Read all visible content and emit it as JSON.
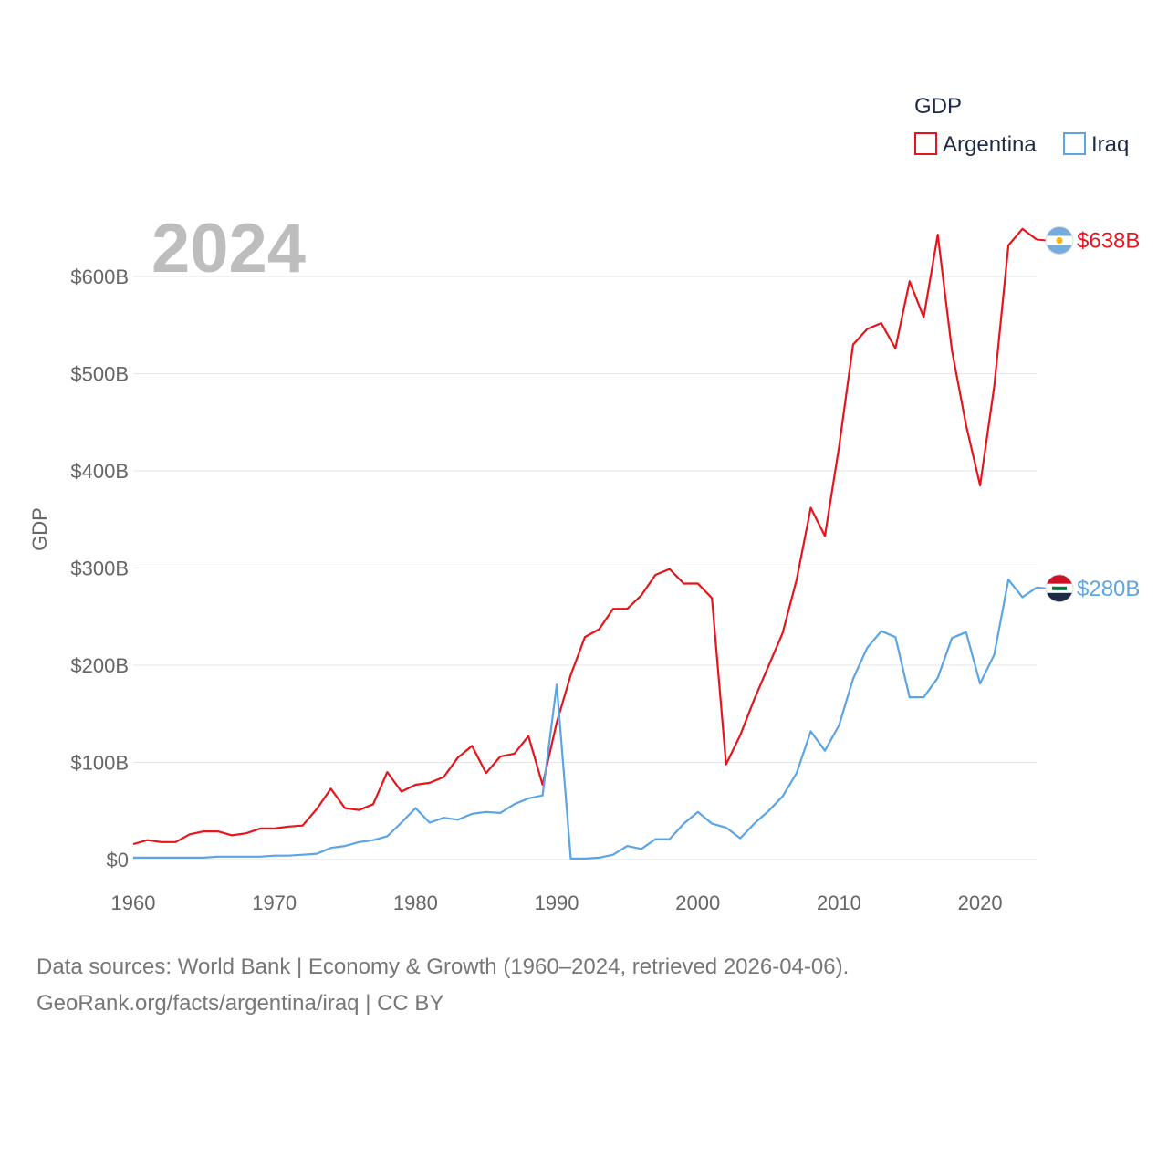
{
  "chart_data": {
    "type": "line",
    "title": "GDP",
    "year_display": "2024",
    "ylabel": "GDP",
    "xlabel": "",
    "ylim": [
      0,
      650
    ],
    "xlim": [
      1960,
      2024
    ],
    "x_ticks": [
      "1960",
      "1970",
      "1980",
      "1990",
      "2000",
      "2010",
      "2020"
    ],
    "y_ticks": [
      {
        "value": 0,
        "label": "$0"
      },
      {
        "value": 100,
        "label": "$100B"
      },
      {
        "value": 200,
        "label": "$200B"
      },
      {
        "value": 300,
        "label": "$300B"
      },
      {
        "value": 400,
        "label": "$400B"
      },
      {
        "value": 500,
        "label": "$500B"
      },
      {
        "value": 600,
        "label": "$600B"
      }
    ],
    "legend": {
      "title": "GDP",
      "placement": "top-right"
    },
    "x": [
      1960,
      1961,
      1962,
      1963,
      1964,
      1965,
      1966,
      1967,
      1968,
      1969,
      1970,
      1971,
      1972,
      1973,
      1974,
      1975,
      1976,
      1977,
      1978,
      1979,
      1980,
      1981,
      1982,
      1983,
      1984,
      1985,
      1986,
      1987,
      1988,
      1989,
      1990,
      1991,
      1992,
      1993,
      1994,
      1995,
      1996,
      1997,
      1998,
      1999,
      2000,
      2001,
      2002,
      2003,
      2004,
      2005,
      2006,
      2007,
      2008,
      2009,
      2010,
      2011,
      2012,
      2013,
      2014,
      2015,
      2016,
      2017,
      2018,
      2019,
      2020,
      2021,
      2022,
      2023,
      2024
    ],
    "series": [
      {
        "name": "Argentina",
        "color": "#e8141b",
        "end_label": "$638B",
        "flag": "argentina-flag",
        "values": [
          16,
          20,
          18,
          18,
          26,
          29,
          29,
          25,
          27,
          32,
          32,
          34,
          35,
          52,
          73,
          53,
          51,
          57,
          90,
          70,
          77,
          79,
          85,
          105,
          117,
          89,
          106,
          109,
          127,
          77,
          141,
          190,
          229,
          237,
          258,
          258,
          272,
          293,
          299,
          284,
          284,
          269,
          98,
          128,
          165,
          199,
          233,
          288,
          362,
          333,
          424,
          530,
          546,
          552,
          526,
          595,
          558,
          643,
          524,
          447,
          385,
          487,
          632,
          649,
          638
        ]
      },
      {
        "name": "Iraq",
        "color": "#5ba4e5",
        "end_label": "$280B",
        "flag": "iraq-flag",
        "values": [
          2,
          2,
          2,
          2,
          2,
          2,
          3,
          3,
          3,
          3,
          4,
          4,
          5,
          6,
          12,
          14,
          18,
          20,
          24,
          38,
          53,
          38,
          43,
          41,
          47,
          49,
          48,
          57,
          63,
          66,
          180,
          1,
          1,
          2,
          5,
          14,
          11,
          21,
          21,
          37,
          49,
          37,
          33,
          22,
          37,
          50,
          65,
          89,
          132,
          112,
          138,
          186,
          218,
          235,
          229,
          167,
          167,
          187,
          228,
          234,
          181,
          211,
          288,
          270,
          280
        ]
      }
    ],
    "source_lines": [
      "Data sources: World Bank | Economy & Growth (1960–2024, retrieved 2026-04-06).",
      "GeoRank.org/facts/argentina/iraq | CC BY"
    ]
  }
}
